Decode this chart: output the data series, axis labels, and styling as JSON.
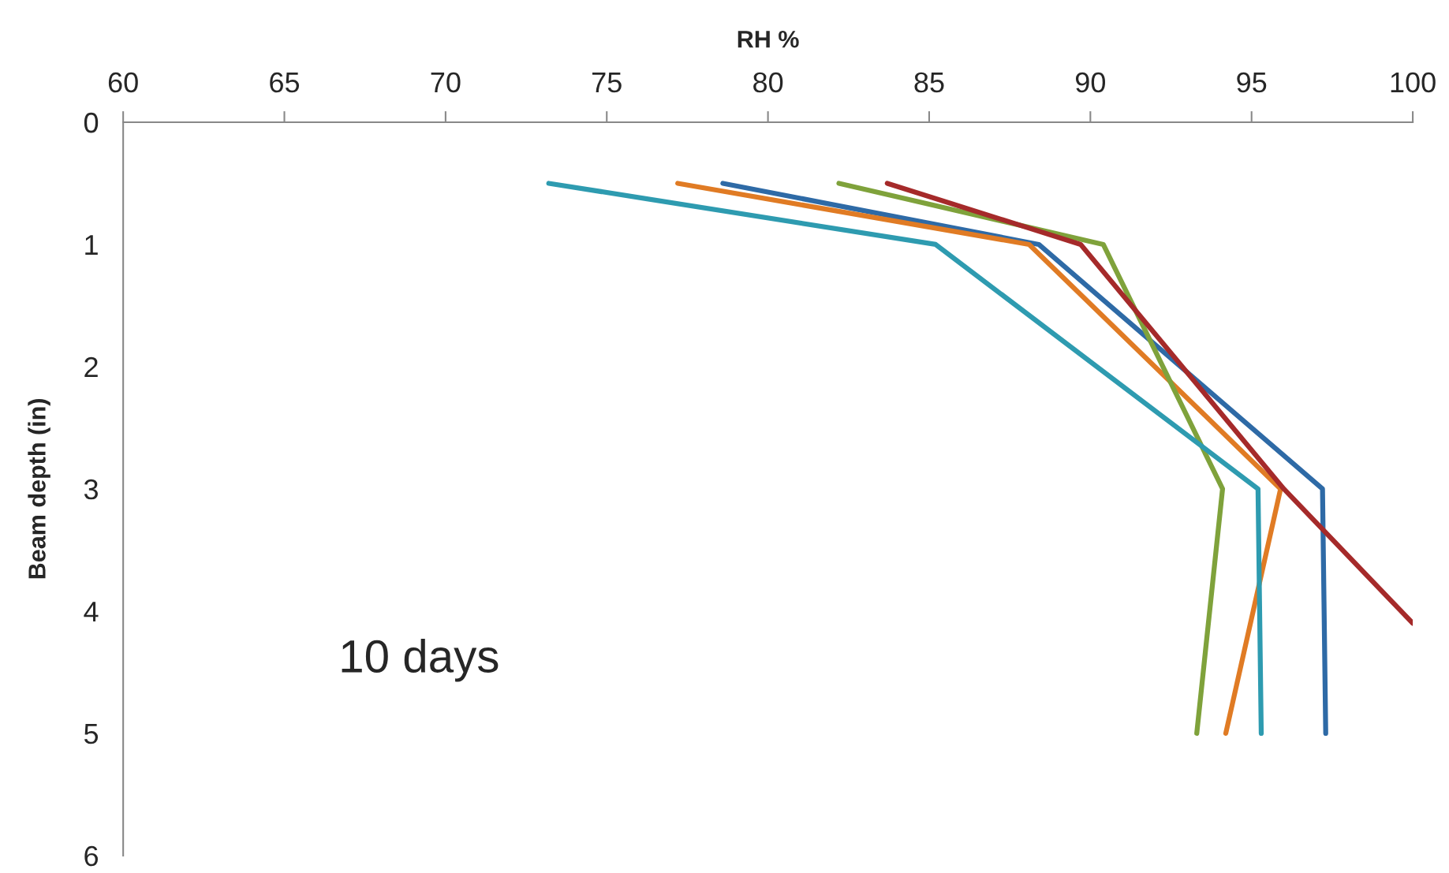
{
  "chart_data": {
    "type": "line",
    "xlabel": "RH %",
    "ylabel": "Beam depth (in)",
    "xlim": [
      60,
      100
    ],
    "xticks": [
      60,
      65,
      70,
      75,
      80,
      85,
      90,
      95,
      100
    ],
    "ylim": [
      6,
      0
    ],
    "yticks": [
      0,
      1,
      2,
      3,
      4,
      5,
      6
    ],
    "grid": false,
    "marker": "none",
    "line_style": "solid",
    "annotations": [
      "10 days"
    ],
    "series": [
      {
        "color": "#2e6aa6",
        "x": [
          78.6,
          88.4,
          97.2,
          97.3
        ],
        "values": [
          0.5,
          1,
          3,
          5
        ]
      },
      {
        "color": "#e07b24",
        "x": [
          77.2,
          88.1,
          95.9,
          94.2
        ],
        "values": [
          0.5,
          1,
          3,
          5
        ]
      },
      {
        "color": "#7fa23b",
        "x": [
          82.2,
          90.4,
          94.1,
          93.3
        ],
        "values": [
          0.5,
          1,
          3,
          5
        ]
      },
      {
        "color": "#a52a2a",
        "x": [
          83.7,
          89.7,
          96.0,
          100
        ],
        "values": [
          0.5,
          1,
          3,
          4.1
        ]
      },
      {
        "color": "#2e9bb0",
        "x": [
          73.2,
          85.2,
          95.2,
          95.3
        ],
        "values": [
          0.5,
          1,
          3,
          5
        ]
      }
    ]
  }
}
